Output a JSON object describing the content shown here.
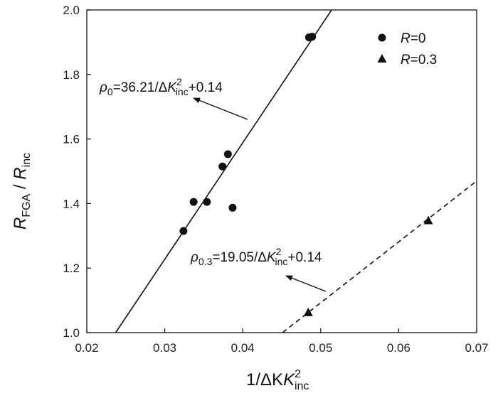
{
  "chart_data": {
    "type": "scatter",
    "xlim": [
      0.02,
      0.07
    ],
    "ylim": [
      1.0,
      2.0
    ],
    "x_ticks": [
      0.02,
      0.03,
      0.04,
      0.05,
      0.06,
      0.07
    ],
    "y_ticks": [
      1.0,
      1.2,
      1.4,
      1.6,
      1.8,
      2.0
    ],
    "x_tick_labels": [
      "0.02",
      "0.03",
      "0.04",
      "0.05",
      "0.06",
      "0.07"
    ],
    "y_tick_labels": [
      "1.0",
      "1.2",
      "1.4",
      "1.6",
      "1.8",
      "2.0"
    ],
    "grid": false,
    "legend_position": "top-right",
    "xlabel": {
      "main": "1/ΔK",
      "italic": "K",
      "sup": "2",
      "sub": "inc"
    },
    "ylabel": {
      "r1": "R",
      "sub1": "FGA",
      "sep": " / ",
      "r2": "R",
      "sub2": "inc"
    },
    "series": [
      {
        "name": "R=0",
        "legend": {
          "italic": "R",
          "rest": "=0"
        },
        "marker": "circle",
        "x": [
          0.0324,
          0.0337,
          0.0354,
          0.0374,
          0.0381,
          0.0387,
          0.0485,
          0.0489
        ],
        "y": [
          1.315,
          1.405,
          1.405,
          1.515,
          1.553,
          1.387,
          1.915,
          1.917
        ]
      },
      {
        "name": "R=0.3",
        "legend": {
          "italic": "R",
          "rest": "=0.3"
        },
        "marker": "triangle",
        "x": [
          0.0484,
          0.0638
        ],
        "y": [
          1.063,
          1.348
        ]
      }
    ],
    "fits": [
      {
        "series": "R=0",
        "slope": 36.21,
        "intercept": 0.14,
        "style": "solid",
        "x_from": 0.0237,
        "x_to": 0.0514
      },
      {
        "series": "R=0.3",
        "slope": 19.05,
        "intercept": 0.14,
        "style": "dashed",
        "x_from": 0.0451,
        "x_to": 0.07
      }
    ],
    "annotations": [
      {
        "sym": "ρ",
        "sub": "0",
        "a": "=36.21/Δ",
        "k": "K",
        "sup": "2",
        "ksub": "inc",
        "b": "+0.14"
      },
      {
        "sym": "ρ",
        "sub": "0.3",
        "a": "=19.05/Δ",
        "k": "K",
        "sup": "2",
        "ksub": "inc",
        "b": "+0.14"
      }
    ]
  }
}
